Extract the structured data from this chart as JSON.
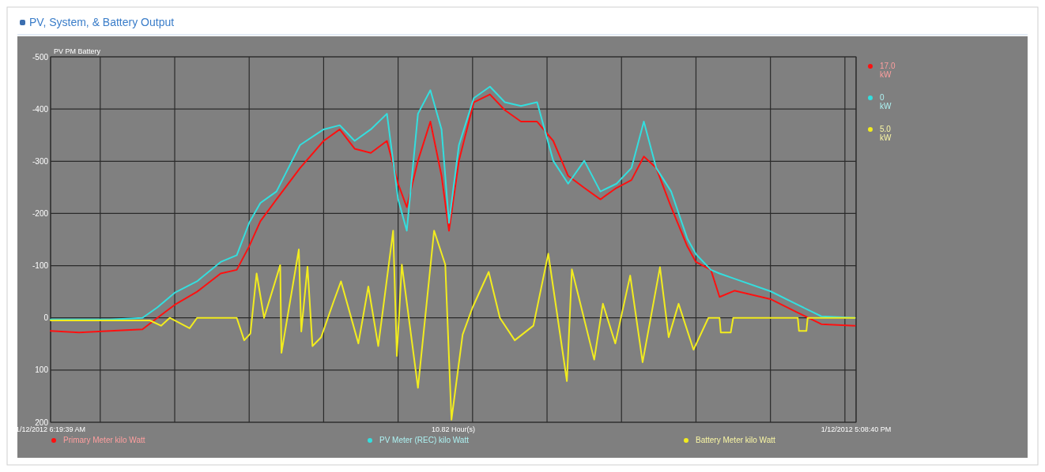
{
  "chart_data": {
    "type": "line",
    "title": "PV, System, & Battery Output",
    "ylabel": "PV PM Battery",
    "xlabel": "10.82 Hour(s)",
    "xlim": [
      "2012-01-12T06:20",
      "2012-01-12T17:09"
    ],
    "xticks": [
      {
        "value": "2012-01-12T06:20",
        "label": "1/12/2012 6:19:39 AM"
      },
      {
        "value": "2012-01-12T07:00",
        "label": null
      },
      {
        "value": "2012-01-12T08:00",
        "label": null
      },
      {
        "value": "2012-01-12T09:00",
        "label": null
      },
      {
        "value": "2012-01-12T10:00",
        "label": null
      },
      {
        "value": "2012-01-12T11:00",
        "label": null
      },
      {
        "value": "2012-01-12T12:00",
        "label": null
      },
      {
        "value": "2012-01-12T13:00",
        "label": null
      },
      {
        "value": "2012-01-12T14:00",
        "label": null
      },
      {
        "value": "2012-01-12T15:00",
        "label": null
      },
      {
        "value": "2012-01-12T16:00",
        "label": null
      },
      {
        "value": "2012-01-12T17:00",
        "label": null
      },
      {
        "value": "2012-01-12T17:09",
        "label": "1/12/2012 5:08:40 PM"
      }
    ],
    "ylim": [
      200,
      -500
    ],
    "yticks": [
      -500,
      -400,
      -300,
      -200,
      -100,
      0,
      100,
      200
    ],
    "grid": true,
    "legend": "bottom",
    "line_style": "solid",
    "annotations": [
      "17.0 kW",
      "0 kW",
      "5.0 kW"
    ],
    "series": [
      {
        "name": "Primary Meter kilo Watt",
        "color": "#ff1010",
        "x": [
          "2012-01-12T06:20",
          "2012-01-12T06:43",
          "2012-01-12T07:08",
          "2012-01-12T07:34",
          "2012-01-12T07:46",
          "2012-01-12T08:00",
          "2012-01-12T08:18",
          "2012-01-12T08:37",
          "2012-01-12T08:50",
          "2012-01-12T09:00",
          "2012-01-12T09:09",
          "2012-01-12T09:22",
          "2012-01-12T09:41",
          "2012-01-12T10:00",
          "2012-01-12T10:13",
          "2012-01-12T10:25",
          "2012-01-12T10:38",
          "2012-01-12T10:51",
          "2012-01-12T11:00",
          "2012-01-12T11:07",
          "2012-01-12T11:16",
          "2012-01-12T11:26",
          "2012-01-12T11:35",
          "2012-01-12T11:41",
          "2012-01-12T11:49",
          "2012-01-12T12:01",
          "2012-01-12T12:14",
          "2012-01-12T12:26",
          "2012-01-12T12:39",
          "2012-01-12T12:52",
          "2012-01-12T13:05",
          "2012-01-12T13:17",
          "2012-01-12T13:30",
          "2012-01-12T13:43",
          "2012-01-12T13:56",
          "2012-01-12T14:08",
          "2012-01-12T14:18",
          "2012-01-12T14:28",
          "2012-01-12T14:40",
          "2012-01-12T14:53",
          "2012-01-12T15:00",
          "2012-01-12T15:12",
          "2012-01-12T15:19",
          "2012-01-12T15:31",
          "2012-01-12T16:00",
          "2012-01-12T16:22",
          "2012-01-12T16:41",
          "2012-01-12T17:08"
        ],
        "values": [
          25,
          28,
          25,
          22,
          0,
          -25,
          -50,
          -85,
          -92,
          -137,
          -185,
          -227,
          -287,
          -339,
          -361,
          -324,
          -316,
          -339,
          -257,
          -212,
          -301,
          -376,
          -272,
          -167,
          -301,
          -413,
          -428,
          -398,
          -376,
          -376,
          -339,
          -272,
          -249,
          -227,
          -249,
          -264,
          -309,
          -287,
          -212,
          -137,
          -107,
          -92,
          -40,
          -52,
          -36,
          -10,
          12,
          15
        ]
      },
      {
        "name": "PV Meter (REC) kilo Watt",
        "color": "#33dede",
        "x": [
          "2012-01-12T06:20",
          "2012-01-12T06:43",
          "2012-01-12T07:08",
          "2012-01-12T07:34",
          "2012-01-12T07:46",
          "2012-01-12T08:00",
          "2012-01-12T08:18",
          "2012-01-12T08:37",
          "2012-01-12T08:50",
          "2012-01-12T09:00",
          "2012-01-12T09:09",
          "2012-01-12T09:22",
          "2012-01-12T09:41",
          "2012-01-12T10:00",
          "2012-01-12T10:13",
          "2012-01-12T10:25",
          "2012-01-12T10:38",
          "2012-01-12T10:51",
          "2012-01-12T11:00",
          "2012-01-12T11:07",
          "2012-01-12T11:16",
          "2012-01-12T11:26",
          "2012-01-12T11:35",
          "2012-01-12T11:41",
          "2012-01-12T11:49",
          "2012-01-12T12:01",
          "2012-01-12T12:14",
          "2012-01-12T12:26",
          "2012-01-12T12:39",
          "2012-01-12T12:52",
          "2012-01-12T13:05",
          "2012-01-12T13:17",
          "2012-01-12T13:30",
          "2012-01-12T13:43",
          "2012-01-12T13:56",
          "2012-01-12T14:08",
          "2012-01-12T14:18",
          "2012-01-12T14:28",
          "2012-01-12T14:40",
          "2012-01-12T14:53",
          "2012-01-12T15:00",
          "2012-01-12T15:12",
          "2012-01-12T15:19",
          "2012-01-12T15:31",
          "2012-01-12T16:00",
          "2012-01-12T16:22",
          "2012-01-12T16:41",
          "2012-01-12T17:08"
        ],
        "values": [
          3,
          3,
          3,
          0,
          -20,
          -48,
          -70,
          -107,
          -120,
          -182,
          -220,
          -242,
          -331,
          -361,
          -369,
          -339,
          -361,
          -391,
          -227,
          -167,
          -391,
          -436,
          -361,
          -182,
          -331,
          -421,
          -443,
          -413,
          -406,
          -413,
          -301,
          -257,
          -301,
          -242,
          -257,
          -287,
          -376,
          -287,
          -242,
          -152,
          -122,
          -92,
          -85,
          -75,
          -51,
          -25,
          -3,
          0
        ]
      },
      {
        "name": "Battery Meter kilo Watt",
        "color": "#f2ec1e",
        "x": [
          "2012-01-12T06:20",
          "2012-01-12T07:40",
          "2012-01-12T07:49",
          "2012-01-12T07:56",
          "2012-01-12T08:12",
          "2012-01-12T08:18",
          "2012-01-12T08:50",
          "2012-01-12T08:56",
          "2012-01-12T09:01",
          "2012-01-12T09:06",
          "2012-01-12T09:12",
          "2012-01-12T09:25",
          "2012-01-12T09:26",
          "2012-01-12T09:40",
          "2012-01-12T09:42",
          "2012-01-12T09:47",
          "2012-01-12T09:51",
          "2012-01-12T09:58",
          "2012-01-12T10:08",
          "2012-01-12T10:14",
          "2012-01-12T10:28",
          "2012-01-12T10:36",
          "2012-01-12T10:44",
          "2012-01-12T10:56",
          "2012-01-12T10:59",
          "2012-01-12T11:03",
          "2012-01-12T11:16",
          "2012-01-12T11:29",
          "2012-01-12T11:38",
          "2012-01-12T11:43",
          "2012-01-12T11:52",
          "2012-01-12T12:00",
          "2012-01-12T12:13",
          "2012-01-12T12:22",
          "2012-01-12T12:34",
          "2012-01-12T12:49",
          "2012-01-12T13:01",
          "2012-01-12T13:16",
          "2012-01-12T13:20",
          "2012-01-12T13:38",
          "2012-01-12T13:45",
          "2012-01-12T13:55",
          "2012-01-12T14:07",
          "2012-01-12T14:17",
          "2012-01-12T14:31",
          "2012-01-12T14:38",
          "2012-01-12T14:46",
          "2012-01-12T14:58",
          "2012-01-12T15:10",
          "2012-01-12T15:19",
          "2012-01-12T15:20",
          "2012-01-12T15:28",
          "2012-01-12T15:30",
          "2012-01-12T16:22",
          "2012-01-12T16:23",
          "2012-01-12T16:29",
          "2012-01-12T16:30",
          "2012-01-12T17:08"
        ],
        "values": [
          5,
          5,
          15,
          0,
          20,
          0,
          0,
          43,
          30,
          -85,
          0,
          -101,
          67,
          -131,
          26,
          -98,
          54,
          37,
          -31,
          -70,
          49,
          -60,
          54,
          -167,
          73,
          -102,
          134,
          -167,
          -102,
          195,
          32,
          -20,
          -88,
          0,
          43,
          15,
          -123,
          121,
          -93,
          80,
          -27,
          49,
          -81,
          85,
          -97,
          37,
          -27,
          61,
          0,
          0,
          28,
          28,
          0,
          0,
          25,
          25,
          0,
          0
        ]
      }
    ]
  }
}
